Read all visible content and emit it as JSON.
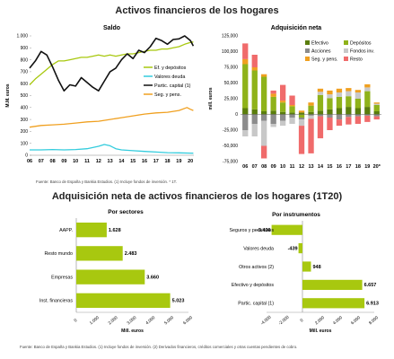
{
  "page": {
    "title_top": "Activos financieros de los hogares",
    "title_bottom": "Adquisición neta de activos financieros de los hogares (1T20)",
    "source_top": "Fuente: Banco de España y Bankia Estudios. (1) Incluye fondos de inversión. * 1T.",
    "source_bottom": "Fuente: Banco de España y Bankia Estudios. (1) Incluye fondos de inversión. (2) Derivados financieros, créditos comerciales y otras cuentas pendientes de cobro."
  },
  "colors": {
    "ef_depositos": "#a8c80f",
    "valores_deuda": "#33ccdd",
    "partic_capital": "#111111",
    "seg_pens": "#f0a020",
    "efectivo": "#5a7d0c",
    "depositos": "#8fb21a",
    "acciones": "#8c8c8c",
    "fondos_inv": "#c8c8c8",
    "resto": "#f06b6b",
    "bar_green": "#a8c80f"
  },
  "chart_data": [
    {
      "id": "saldo",
      "type": "line",
      "title": "Saldo",
      "ylabel": "M.M. euros",
      "ylim": [
        0,
        1000
      ],
      "yticks": [
        0,
        100,
        200,
        300,
        400,
        500,
        600,
        700,
        800,
        900,
        1000
      ],
      "ytick_labels": [
        "0",
        "100",
        "200",
        "300",
        "400",
        "500",
        "600",
        "700",
        "800",
        "900",
        "1.000"
      ],
      "xlim": [
        2006,
        2020.3
      ],
      "xticks": [
        2006,
        2007,
        2008,
        2009,
        2010,
        2011,
        2012,
        2013,
        2014,
        2015,
        2016,
        2017,
        2018,
        2019,
        2020
      ],
      "xtick_labels": [
        "06",
        "07",
        "08",
        "09",
        "10",
        "11",
        "12",
        "13",
        "14",
        "15",
        "16",
        "17",
        "18",
        "19",
        "20"
      ],
      "legend_position": "right",
      "series": [
        {
          "name": "Ef. y depósitos",
          "color_key": "ef_depositos",
          "points": [
            [
              2006,
              590
            ],
            [
              2006.5,
              640
            ],
            [
              2007,
              680
            ],
            [
              2007.5,
              720
            ],
            [
              2008,
              760
            ],
            [
              2008.5,
              790
            ],
            [
              2009,
              790
            ],
            [
              2009.5,
              800
            ],
            [
              2010,
              810
            ],
            [
              2010.5,
              820
            ],
            [
              2011,
              820
            ],
            [
              2011.5,
              830
            ],
            [
              2012,
              840
            ],
            [
              2012.5,
              830
            ],
            [
              2013,
              840
            ],
            [
              2013.5,
              830
            ],
            [
              2014,
              840
            ],
            [
              2014.5,
              850
            ],
            [
              2015,
              850
            ],
            [
              2015.5,
              860
            ],
            [
              2016,
              870
            ],
            [
              2016.5,
              880
            ],
            [
              2017,
              880
            ],
            [
              2017.5,
              890
            ],
            [
              2018,
              890
            ],
            [
              2018.5,
              900
            ],
            [
              2019,
              910
            ],
            [
              2019.5,
              930
            ],
            [
              2020,
              945
            ],
            [
              2020.25,
              950
            ]
          ]
        },
        {
          "name": "Valores deuda",
          "color_key": "valores_deuda",
          "points": [
            [
              2006,
              45
            ],
            [
              2007,
              45
            ],
            [
              2008,
              48
            ],
            [
              2009,
              45
            ],
            [
              2010,
              48
            ],
            [
              2011,
              55
            ],
            [
              2012,
              75
            ],
            [
              2012.5,
              90
            ],
            [
              2013,
              80
            ],
            [
              2013.5,
              55
            ],
            [
              2014,
              45
            ],
            [
              2015,
              38
            ],
            [
              2016,
              32
            ],
            [
              2017,
              27
            ],
            [
              2018,
              22
            ],
            [
              2019,
              20
            ],
            [
              2020,
              18
            ],
            [
              2020.25,
              17
            ]
          ]
        },
        {
          "name": "Partic. capital (1)",
          "color_key": "partic_capital",
          "points": [
            [
              2006,
              730
            ],
            [
              2006.5,
              790
            ],
            [
              2007,
              870
            ],
            [
              2007.5,
              840
            ],
            [
              2008,
              740
            ],
            [
              2008.5,
              630
            ],
            [
              2009,
              540
            ],
            [
              2009.5,
              590
            ],
            [
              2010,
              580
            ],
            [
              2010.5,
              650
            ],
            [
              2011,
              610
            ],
            [
              2011.5,
              570
            ],
            [
              2012,
              540
            ],
            [
              2012.5,
              620
            ],
            [
              2013,
              700
            ],
            [
              2013.5,
              730
            ],
            [
              2014,
              800
            ],
            [
              2014.5,
              850
            ],
            [
              2015,
              810
            ],
            [
              2015.5,
              880
            ],
            [
              2016,
              860
            ],
            [
              2016.5,
              910
            ],
            [
              2017,
              980
            ],
            [
              2017.5,
              960
            ],
            [
              2018,
              930
            ],
            [
              2018.5,
              970
            ],
            [
              2019,
              975
            ],
            [
              2019.5,
              1000
            ],
            [
              2020,
              960
            ],
            [
              2020.25,
              915
            ]
          ]
        },
        {
          "name": "Seg. y pens.",
          "color_key": "seg_pens",
          "points": [
            [
              2006,
              235
            ],
            [
              2007,
              250
            ],
            [
              2008,
              255
            ],
            [
              2009,
              260
            ],
            [
              2010,
              270
            ],
            [
              2011,
              280
            ],
            [
              2012,
              285
            ],
            [
              2013,
              300
            ],
            [
              2014,
              315
            ],
            [
              2015,
              330
            ],
            [
              2016,
              345
            ],
            [
              2017,
              355
            ],
            [
              2018,
              360
            ],
            [
              2019,
              375
            ],
            [
              2019.7,
              400
            ],
            [
              2020,
              385
            ],
            [
              2020.25,
              375
            ]
          ]
        }
      ]
    },
    {
      "id": "adquisicion",
      "type": "bar",
      "stacked": true,
      "title": "Adquisición neta",
      "ylabel": "mill. euros",
      "ylim": [
        -75000,
        125000
      ],
      "yticks": [
        -75000,
        -50000,
        -25000,
        0,
        25000,
        50000,
        75000,
        100000,
        125000
      ],
      "ytick_labels": [
        "-75,000",
        "-50,000",
        "-25,000",
        "0",
        "25,000",
        "50,000",
        "75,000",
        "100,000",
        "125,000"
      ],
      "categories": [
        "06",
        "07",
        "08",
        "09",
        "10",
        "11",
        "12",
        "13",
        "14",
        "15",
        "16",
        "17",
        "18",
        "19",
        "20*"
      ],
      "legend_position": "top-right",
      "series": [
        {
          "name": "Efectivo",
          "color_key": "efectivo",
          "values": [
            10000,
            8000,
            5000,
            6000,
            4000,
            3000,
            3000,
            4000,
            6000,
            8000,
            10000,
            12000,
            10000,
            12000,
            5000
          ]
        },
        {
          "name": "Depósitos",
          "color_key": "depositos",
          "values": [
            70000,
            62000,
            55000,
            22000,
            15000,
            10000,
            -5000,
            10000,
            25000,
            18000,
            18000,
            17000,
            15000,
            25000,
            10000
          ]
        },
        {
          "name": "Acciones",
          "color_key": "acciones",
          "values": [
            -25000,
            -15000,
            -10000,
            -15000,
            -10000,
            -5000,
            -3000,
            -2000,
            -3000,
            -5000,
            -8000,
            -4000,
            -3000,
            -2000,
            -3000
          ]
        },
        {
          "name": "Fondos inv.",
          "color_key": "fondos_inv",
          "values": [
            -10000,
            -20000,
            -40000,
            -5000,
            -8000,
            -10000,
            -10000,
            -5000,
            5000,
            6000,
            7000,
            8000,
            10000,
            6000,
            2000
          ]
        },
        {
          "name": "Seg. y pens.",
          "color_key": "seg_pens",
          "values": [
            8000,
            5000,
            4000,
            5000,
            3000,
            2000,
            3000,
            5000,
            5000,
            6000,
            6000,
            5000,
            4000,
            5000,
            2000
          ]
        },
        {
          "name": "Resto",
          "color_key": "resto",
          "values": [
            25000,
            20000,
            -20000,
            5000,
            25000,
            15000,
            -45000,
            -55000,
            -35000,
            -20000,
            -10000,
            -12000,
            -12000,
            -10000,
            -5000
          ]
        }
      ]
    },
    {
      "id": "sectores",
      "type": "bar",
      "orientation": "horizontal",
      "title": "Por sectores",
      "xlabel": "Mill. euros",
      "xlim": [
        0,
        6000
      ],
      "xticks": [
        0,
        1000,
        2000,
        3000,
        4000,
        5000,
        6000
      ],
      "xtick_labels": [
        "0",
        "1.000",
        "2.000",
        "3.000",
        "4.000",
        "5.000",
        "6.000"
      ],
      "categories": [
        "AAPP.",
        "Resto mundo",
        "Empresas",
        "Inst. financieras"
      ],
      "values": [
        1628,
        2483,
        3660,
        5023
      ],
      "value_labels": [
        "1.628",
        "2.483",
        "3.660",
        "5.023"
      ]
    },
    {
      "id": "instrumentos",
      "type": "bar",
      "orientation": "horizontal",
      "title": "Por instrumentos",
      "xlabel": "Mill. euros",
      "xlim": [
        -4000,
        8000
      ],
      "xticks": [
        -4000,
        -2000,
        0,
        2000,
        4000,
        6000,
        8000
      ],
      "xtick_labels": [
        "-4.000",
        "-2.000",
        "0",
        "2.000",
        "4.000",
        "6.000",
        "8.000"
      ],
      "categories": [
        "Seguros y pensiones",
        "Valores deuda",
        "Otros activos (2)",
        "Efectivo y depósitos",
        "Partic. capital (1)"
      ],
      "values": [
        -3436,
        -439,
        948,
        6657,
        6913
      ],
      "value_labels": [
        "-3.436",
        "-439",
        "948",
        "6.657",
        "6.913"
      ]
    }
  ]
}
